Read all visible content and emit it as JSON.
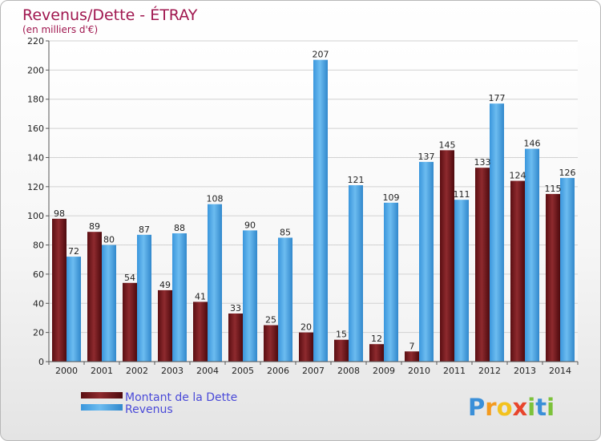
{
  "chart_data": {
    "type": "bar",
    "title": "Revenus/Dette - ÉTRAY",
    "subtitle": "(en milliers d'€)",
    "categories": [
      "2000",
      "2001",
      "2002",
      "2003",
      "2004",
      "2005",
      "2006",
      "2007",
      "2008",
      "2009",
      "2010",
      "2011",
      "2012",
      "2013",
      "2014"
    ],
    "series": [
      {
        "name": "Montant de la Dette",
        "color": "#7a1a1e",
        "values": [
          98,
          89,
          54,
          49,
          41,
          33,
          25,
          20,
          15,
          12,
          7,
          145,
          133,
          124,
          115
        ]
      },
      {
        "name": "Revenus",
        "color": "#4aa8e8",
        "values": [
          72,
          80,
          87,
          88,
          108,
          90,
          85,
          207,
          121,
          109,
          137,
          111,
          177,
          146,
          126
        ]
      }
    ],
    "ylim": [
      0,
      220
    ],
    "yticks": [
      0,
      20,
      40,
      60,
      80,
      100,
      120,
      140,
      160,
      180,
      200,
      220
    ],
    "grid": true,
    "legend_position": "bottom-left"
  },
  "brand": {
    "letters": [
      "P",
      "r",
      "o",
      "x",
      "i",
      "t",
      "i"
    ],
    "colors": [
      "#3a8fd8",
      "#f39a1e",
      "#f3c21e",
      "#e8452c",
      "#7cc23a",
      "#3a8fd8",
      "#7cc23a"
    ]
  }
}
